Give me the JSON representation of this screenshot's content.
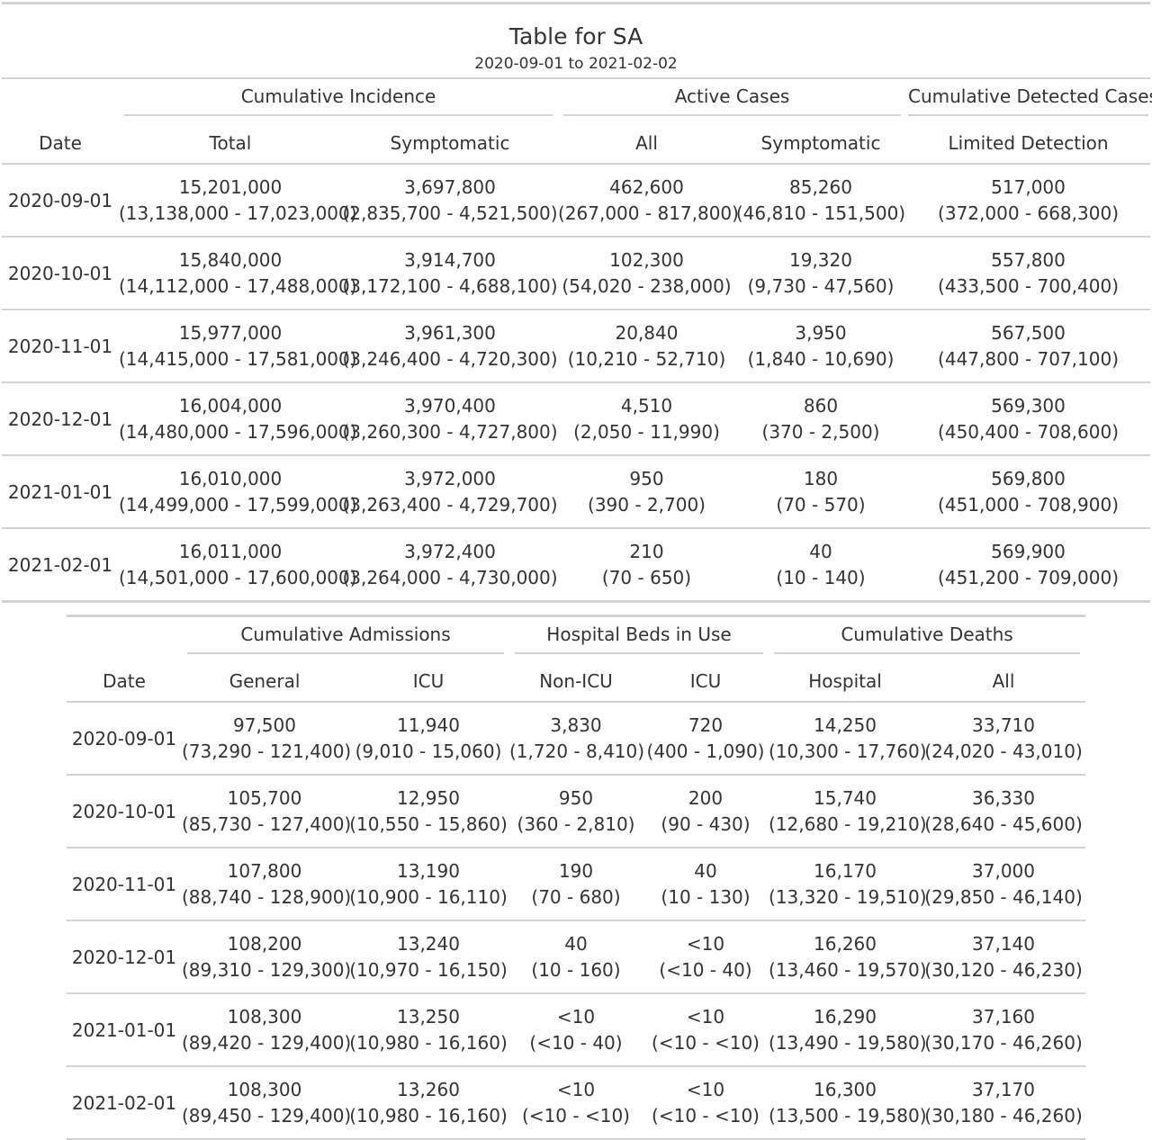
{
  "title": "Table for SA",
  "subtitle": "2020-09-01 to 2021-02-02",
  "table1": {
    "date_header": "Date",
    "spanners": [
      {
        "label": "Cumulative Incidence",
        "colspan": 2
      },
      {
        "label": "Active Cases",
        "colspan": 2
      },
      {
        "label": "Cumulative Detected Cases",
        "colspan": 1
      }
    ],
    "columns": [
      "Total",
      "Symptomatic",
      "All",
      "Symptomatic",
      "Limited Detection"
    ],
    "rows": [
      {
        "date": "2020-09-01",
        "cells": [
          [
            "15,201,000",
            "(13,138,000 - 17,023,000)"
          ],
          [
            "3,697,800",
            "(2,835,700 - 4,521,500)"
          ],
          [
            "462,600",
            "(267,000 - 817,800)"
          ],
          [
            "85,260",
            "(46,810 - 151,500)"
          ],
          [
            "517,000",
            "(372,000 - 668,300)"
          ]
        ]
      },
      {
        "date": "2020-10-01",
        "cells": [
          [
            "15,840,000",
            "(14,112,000 - 17,488,000)"
          ],
          [
            "3,914,700",
            "(3,172,100 - 4,688,100)"
          ],
          [
            "102,300",
            "(54,020 - 238,000)"
          ],
          [
            "19,320",
            "(9,730 - 47,560)"
          ],
          [
            "557,800",
            "(433,500 - 700,400)"
          ]
        ]
      },
      {
        "date": "2020-11-01",
        "cells": [
          [
            "15,977,000",
            "(14,415,000 - 17,581,000)"
          ],
          [
            "3,961,300",
            "(3,246,400 - 4,720,300)"
          ],
          [
            "20,840",
            "(10,210 - 52,710)"
          ],
          [
            "3,950",
            "(1,840 - 10,690)"
          ],
          [
            "567,500",
            "(447,800 - 707,100)"
          ]
        ]
      },
      {
        "date": "2020-12-01",
        "cells": [
          [
            "16,004,000",
            "(14,480,000 - 17,596,000)"
          ],
          [
            "3,970,400",
            "(3,260,300 - 4,727,800)"
          ],
          [
            "4,510",
            "(2,050 - 11,990)"
          ],
          [
            "860",
            "(370 - 2,500)"
          ],
          [
            "569,300",
            "(450,400 - 708,600)"
          ]
        ]
      },
      {
        "date": "2021-01-01",
        "cells": [
          [
            "16,010,000",
            "(14,499,000 - 17,599,000)"
          ],
          [
            "3,972,000",
            "(3,263,400 - 4,729,700)"
          ],
          [
            "950",
            "(390 - 2,700)"
          ],
          [
            "180",
            "(70 - 570)"
          ],
          [
            "569,800",
            "(451,000 - 708,900)"
          ]
        ]
      },
      {
        "date": "2021-02-01",
        "cells": [
          [
            "16,011,000",
            "(14,501,000 - 17,600,000)"
          ],
          [
            "3,972,400",
            "(3,264,000 - 4,730,000)"
          ],
          [
            "210",
            "(70 - 650)"
          ],
          [
            "40",
            "(10 - 140)"
          ],
          [
            "569,900",
            "(451,200 - 709,000)"
          ]
        ]
      }
    ]
  },
  "table2": {
    "date_header": "Date",
    "spanners": [
      {
        "label": "Cumulative Admissions",
        "colspan": 2
      },
      {
        "label": "Hospital Beds in Use",
        "colspan": 2
      },
      {
        "label": "Cumulative Deaths",
        "colspan": 2
      }
    ],
    "columns": [
      "General",
      "ICU",
      "Non-ICU",
      "ICU",
      "Hospital",
      "All"
    ],
    "rows": [
      {
        "date": "2020-09-01",
        "cells": [
          [
            "97,500",
            "(73,290 - 121,400)"
          ],
          [
            "11,940",
            "(9,010 - 15,060)"
          ],
          [
            "3,830",
            "(1,720 - 8,410)"
          ],
          [
            "720",
            "(400 - 1,090)"
          ],
          [
            "14,250",
            "(10,300 - 17,760)"
          ],
          [
            "33,710",
            "(24,020 - 43,010)"
          ]
        ]
      },
      {
        "date": "2020-10-01",
        "cells": [
          [
            "105,700",
            "(85,730 - 127,400)"
          ],
          [
            "12,950",
            "(10,550 - 15,860)"
          ],
          [
            "950",
            "(360 - 2,810)"
          ],
          [
            "200",
            "(90 - 430)"
          ],
          [
            "15,740",
            "(12,680 - 19,210)"
          ],
          [
            "36,330",
            "(28,640 - 45,600)"
          ]
        ]
      },
      {
        "date": "2020-11-01",
        "cells": [
          [
            "107,800",
            "(88,740 - 128,900)"
          ],
          [
            "13,190",
            "(10,900 - 16,110)"
          ],
          [
            "190",
            "(70 - 680)"
          ],
          [
            "40",
            "(10 - 130)"
          ],
          [
            "16,170",
            "(13,320 - 19,510)"
          ],
          [
            "37,000",
            "(29,850 - 46,140)"
          ]
        ]
      },
      {
        "date": "2020-12-01",
        "cells": [
          [
            "108,200",
            "(89,310 - 129,300)"
          ],
          [
            "13,240",
            "(10,970 - 16,150)"
          ],
          [
            "40",
            "(10 - 160)"
          ],
          [
            "<10",
            "(<10 - 40)"
          ],
          [
            "16,260",
            "(13,460 - 19,570)"
          ],
          [
            "37,140",
            "(30,120 - 46,230)"
          ]
        ]
      },
      {
        "date": "2021-01-01",
        "cells": [
          [
            "108,300",
            "(89,420 - 129,400)"
          ],
          [
            "13,250",
            "(10,980 - 16,160)"
          ],
          [
            "<10",
            "(<10 - 40)"
          ],
          [
            "<10",
            "(<10 - <10)"
          ],
          [
            "16,290",
            "(13,490 - 19,580)"
          ],
          [
            "37,160",
            "(30,170 - 46,260)"
          ]
        ]
      },
      {
        "date": "2021-02-01",
        "cells": [
          [
            "108,300",
            "(89,450 - 129,400)"
          ],
          [
            "13,260",
            "(10,980 - 16,160)"
          ],
          [
            "<10",
            "(<10 - <10)"
          ],
          [
            "<10",
            "(<10 - <10)"
          ],
          [
            "16,300",
            "(13,500 - 19,580)"
          ],
          [
            "37,170",
            "(30,180 - 46,260)"
          ]
        ]
      }
    ]
  }
}
